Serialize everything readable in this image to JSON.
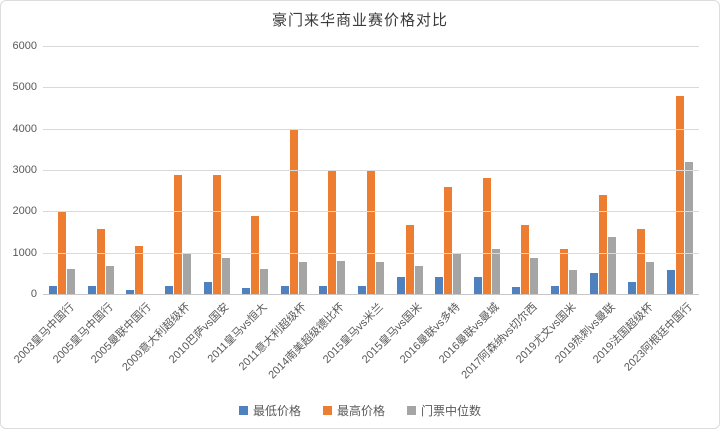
{
  "title": "豪门来华商业赛价格对比",
  "colors": {
    "min_price": "#4E81BD",
    "max_price": "#ED7D31",
    "median_price": "#A5A5A5",
    "gridline": "#D9D9D9",
    "axis_text": "#595959",
    "title_text": "#3B3B3B"
  },
  "chart_data": {
    "type": "bar",
    "title": "豪门来华商业赛价格对比",
    "xlabel": "",
    "ylabel": "",
    "ylim": [
      0,
      6000
    ],
    "yticks": [
      0,
      1000,
      2000,
      3000,
      4000,
      5000,
      6000
    ],
    "grid": true,
    "legend_position": "bottom",
    "categories": [
      "2003皇马中国行",
      "2005皇马中国行",
      "2005曼联中国行",
      "2009意大利超级杯",
      "2010巴萨vs国安",
      "2011皇马vs恒大",
      "2011意大利超级杯",
      "2014南美超级德比杯",
      "2015皇马vs米兰",
      "2015皇马vs国米",
      "2016曼联vs多特",
      "2016曼联vs曼城",
      "2017阿森纳vs切尔西",
      "2019尤文vs国米",
      "2019热刺vs曼联",
      "2019法国超级杯",
      "2023阿根廷中国行"
    ],
    "series": [
      {
        "name": "最低价格",
        "color": "#4E81BD",
        "values": [
          200,
          200,
          100,
          200,
          300,
          150,
          200,
          200,
          200,
          400,
          400,
          400,
          180,
          200,
          500,
          280,
          580
        ]
      },
      {
        "name": "最高价格",
        "color": "#ED7D31",
        "values": [
          2000,
          1580,
          1150,
          2880,
          2880,
          1880,
          4000,
          3000,
          3000,
          1680,
          2600,
          2800,
          1680,
          1080,
          2400,
          1580,
          4800
        ]
      },
      {
        "name": "门票中位数",
        "color": "#A5A5A5",
        "values": [
          600,
          680,
          0,
          980,
          880,
          600,
          780,
          800,
          780,
          680,
          1000,
          1100,
          880,
          580,
          1380,
          780,
          3200
        ]
      }
    ]
  }
}
